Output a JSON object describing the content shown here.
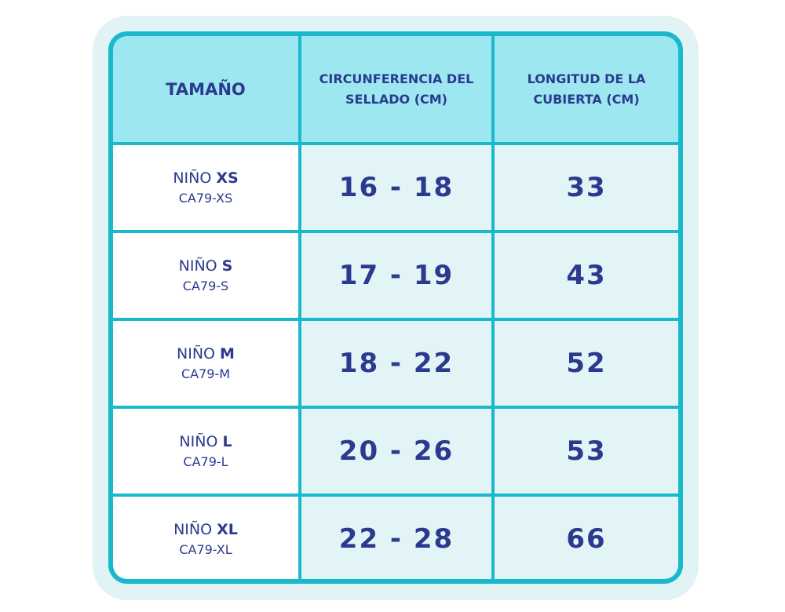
{
  "table": {
    "header": [
      "TAMAÑO",
      "CIRCUNFERENCIA DEL SELLADO (CM)",
      "LONGITUD DE LA CUBIERTA (CM)"
    ],
    "rows": [
      {
        "label": "NIÑO",
        "size": "XS",
        "code": "CA79-XS",
        "circumference": "16 - 18",
        "length": 33
      },
      {
        "label": "NIÑO",
        "size": "S",
        "code": "CA79-S",
        "circumference": "17 - 19",
        "length": 43
      },
      {
        "label": "NIÑO",
        "size": "M",
        "code": "CA79-M",
        "circumference": "18 - 22",
        "length": 52
      },
      {
        "label": "NIÑO",
        "size": "L",
        "code": "CA79-L",
        "circumference": "20 - 26",
        "length": 53
      },
      {
        "label": "NIÑO",
        "size": "XL",
        "code": "CA79-XL",
        "circumference": "22 - 28",
        "length": 66
      }
    ]
  }
}
